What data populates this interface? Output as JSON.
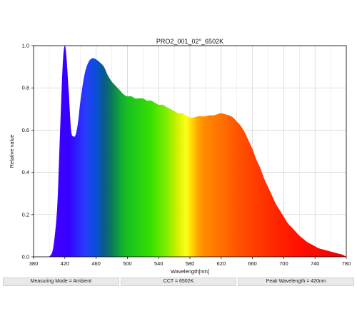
{
  "chart_data": {
    "type": "area",
    "title": "PRO2_001_02°_6502K",
    "xlabel": "Wavelength[nm]",
    "ylabel": "Relative value",
    "xlim": [
      380,
      780
    ],
    "ylim": [
      0,
      1.0
    ],
    "x_ticks": [
      "380",
      "420",
      "460",
      "500",
      "540",
      "580",
      "620",
      "660",
      "700",
      "740",
      "780"
    ],
    "y_ticks": [
      "0.0",
      "0.2",
      "0.4",
      "0.6",
      "0.8",
      "1.0"
    ],
    "grid": true,
    "fill": "visible-spectrum gradient",
    "x": [
      400,
      405,
      410,
      413,
      416,
      418,
      420,
      422,
      425,
      428,
      431,
      434,
      437,
      440,
      445,
      450,
      455,
      460,
      465,
      470,
      475,
      480,
      485,
      490,
      495,
      500,
      505,
      510,
      515,
      520,
      525,
      530,
      535,
      540,
      545,
      550,
      555,
      560,
      565,
      570,
      575,
      580,
      585,
      590,
      595,
      600,
      605,
      610,
      615,
      620,
      625,
      630,
      635,
      640,
      645,
      650,
      655,
      660,
      665,
      670,
      675,
      680,
      685,
      690,
      695,
      700,
      705,
      710,
      715,
      720,
      725,
      730,
      735,
      740,
      745,
      750,
      755,
      760,
      765,
      770,
      775,
      780
    ],
    "values": [
      0.0,
      0.04,
      0.22,
      0.5,
      0.8,
      0.95,
      1.0,
      0.95,
      0.78,
      0.6,
      0.57,
      0.58,
      0.64,
      0.74,
      0.86,
      0.92,
      0.94,
      0.935,
      0.92,
      0.9,
      0.86,
      0.83,
      0.81,
      0.79,
      0.77,
      0.76,
      0.76,
      0.75,
      0.75,
      0.75,
      0.74,
      0.74,
      0.73,
      0.72,
      0.72,
      0.71,
      0.7,
      0.69,
      0.68,
      0.68,
      0.67,
      0.66,
      0.66,
      0.665,
      0.665,
      0.665,
      0.67,
      0.67,
      0.675,
      0.68,
      0.675,
      0.67,
      0.66,
      0.64,
      0.62,
      0.59,
      0.55,
      0.51,
      0.46,
      0.42,
      0.37,
      0.33,
      0.29,
      0.25,
      0.22,
      0.19,
      0.16,
      0.14,
      0.12,
      0.1,
      0.085,
      0.07,
      0.06,
      0.05,
      0.04,
      0.035,
      0.03,
      0.025,
      0.02,
      0.015,
      0.01,
      0.0
    ],
    "colors": {
      "grid": "#cfcfcf",
      "axis": "#000000",
      "background": "#ffffff"
    }
  },
  "info_bar": {
    "measuring_mode": "Measuring Mode = Ambient",
    "cct": "CCT = 6502K",
    "peak_wavelength": "Peak Wavelength = 420nm"
  }
}
